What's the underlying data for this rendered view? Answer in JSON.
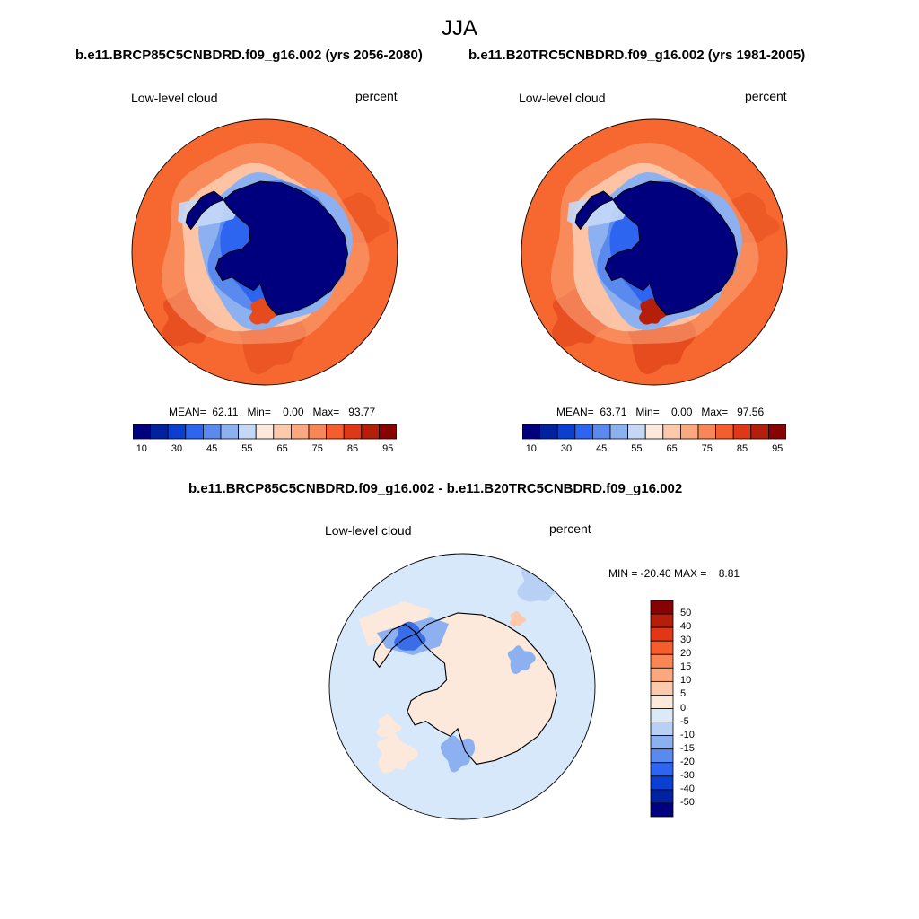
{
  "title": "JJA",
  "panels": [
    {
      "case_title": "b.e11.BRCP85C5CNBDRD.f09_g16.002 (yrs 2056-2080)",
      "left_label": "Low-level cloud",
      "right_label": "percent",
      "stats": "MEAN=  62.11   Min=    0.00   Max=   93.77",
      "mean": 62.11,
      "min": 0.0,
      "max": 93.77
    },
    {
      "case_title": "b.e11.B20TRC5CNBDRD.f09_g16.002 (yrs 1981-2005)",
      "left_label": "Low-level cloud",
      "right_label": "percent",
      "stats": "MEAN=  63.71   Min=    0.00   Max=   97.56",
      "mean": 63.71,
      "min": 0.0,
      "max": 97.56
    }
  ],
  "diff_panel": {
    "case_title": "b.e11.BRCP85C5CNBDRD.f09_g16.002 - b.e11.B20TRC5CNBDRD.f09_g16.002",
    "left_label": "Low-level cloud",
    "right_label": "percent",
    "stats": "MIN = -20.40 MAX =    8.81",
    "min": -20.4,
    "max": 8.81
  },
  "colorbar": {
    "colors": [
      "#00007f",
      "#0022a0",
      "#0a3fd1",
      "#2d64f0",
      "#5b8aee",
      "#8db1f0",
      "#c4d8f6",
      "#fde8dc",
      "#fcc9ad",
      "#fba880",
      "#f88656",
      "#f55d2c",
      "#e03816",
      "#b51e0a",
      "#870202"
    ],
    "tick_labels": [
      "10",
      "30",
      "45",
      "55",
      "65",
      "75",
      "85",
      "95"
    ]
  },
  "diff_colorbar": {
    "colors": [
      "#00007f",
      "#0022a0",
      "#0a3fd1",
      "#2d64f0",
      "#5b8aee",
      "#8db1f0",
      "#b8d0f4",
      "#dceaf8",
      "#fde8dc",
      "#fcc9ad",
      "#fba880",
      "#f88656",
      "#f55d2c",
      "#e03816",
      "#b51e0a",
      "#870202"
    ],
    "tick_labels": [
      "50",
      "40",
      "30",
      "20",
      "15",
      "10",
      "5",
      "0",
      "-5",
      "-10",
      "-15",
      "-20",
      "-30",
      "-40",
      "-50"
    ]
  },
  "map_colors": {
    "ocean": "#f6682f",
    "ocean_dark": "#e54b1e",
    "ocean_light": "#fba880",
    "shelf": "#8db1f0",
    "ice_mid": "#2d64f0",
    "ice_deep": "#00007f",
    "diff_bg": "#d8e8fb",
    "diff_neg": "#8db1f0",
    "diff_strong": "#3a6ee8",
    "diff_pos": "#fde8dc"
  }
}
